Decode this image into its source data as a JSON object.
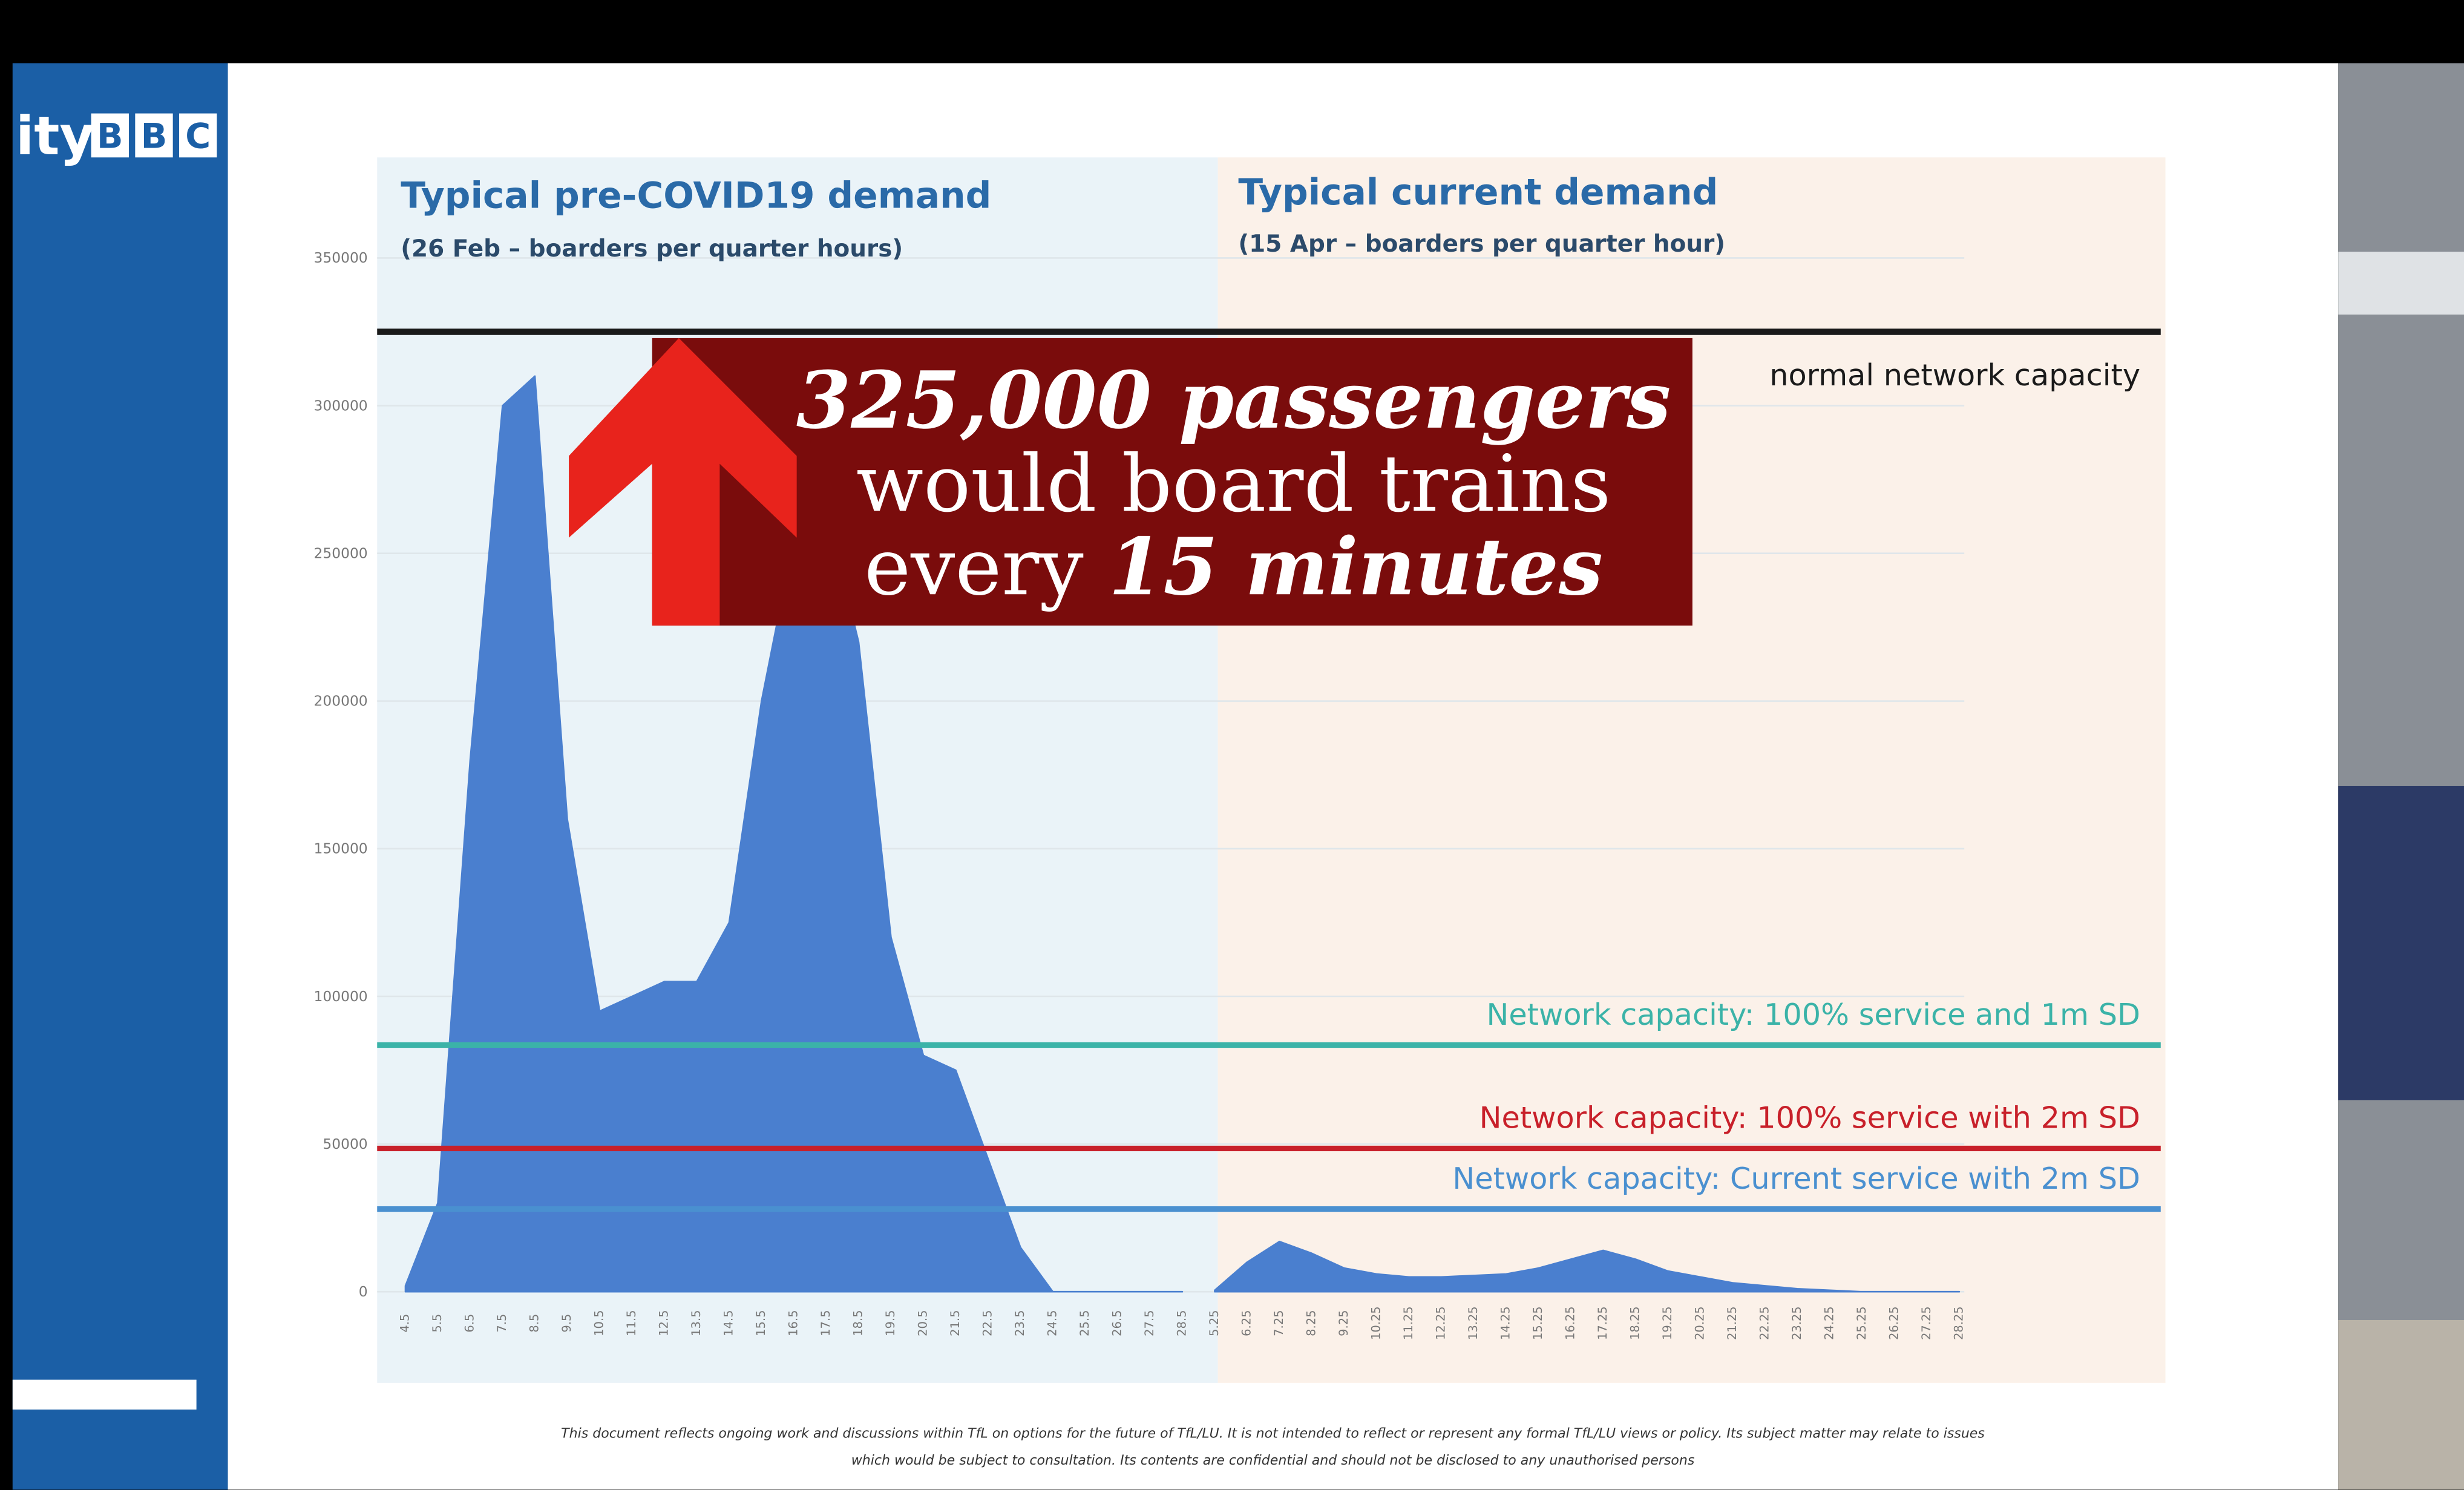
{
  "chart_data": {
    "type": "area",
    "annotations": {
      "left_title": "Typical pre-COVID19 demand",
      "left_subtitle": "(26 Feb – boarders per quarter hours)",
      "right_title": "Typical current demand",
      "right_subtitle": "(15 Apr – boarders per quarter hour)"
    },
    "banner": {
      "line1": "325,000 passengers",
      "line2": "would board trains",
      "line3_a": "every",
      "line3_b": "15 minutes"
    },
    "categories": [
      "4.5",
      "5.5",
      "6.5",
      "7.5",
      "8.5",
      "9.5",
      "10.5",
      "11.5",
      "12.5",
      "13.5",
      "14.5",
      "15.5",
      "16.5",
      "17.5",
      "18.5",
      "19.5",
      "20.5",
      "21.5",
      "22.5",
      "23.5",
      "24.5",
      "25.5",
      "26.5",
      "27.5",
      "28.5",
      "5.25",
      "6.25",
      "7.25",
      "8.25",
      "9.25",
      "10.25",
      "11.25",
      "12.25",
      "13.25",
      "14.25",
      "15.25",
      "16.25",
      "17.25",
      "18.25",
      "19.25",
      "20.25",
      "21.25",
      "22.25",
      "23.25",
      "24.25",
      "25.25",
      "26.25",
      "27.25",
      "28.25"
    ],
    "series": [
      {
        "color": "#4a7fcf",
        "values": [
          2000,
          30000,
          180000,
          300000,
          310000,
          160000,
          95000,
          100000,
          105000,
          105000,
          125000,
          200000,
          255000,
          265000,
          220000,
          120000,
          80000,
          75000,
          45000,
          15000,
          0,
          0,
          0,
          0,
          0,
          null,
          null,
          null,
          null,
          null,
          null,
          null,
          null,
          null,
          null,
          null,
          null,
          null,
          null,
          null,
          null,
          null,
          null,
          null,
          null,
          null,
          null,
          null,
          null
        ]
      },
      {
        "color": "#4a7fcf",
        "values": [
          null,
          null,
          null,
          null,
          null,
          null,
          null,
          null,
          null,
          null,
          null,
          null,
          null,
          null,
          null,
          null,
          null,
          null,
          null,
          null,
          null,
          null,
          null,
          null,
          null,
          500,
          10000,
          17000,
          13000,
          8000,
          6000,
          5000,
          5000,
          5500,
          6000,
          8000,
          11000,
          14000,
          11000,
          7000,
          5000,
          3000,
          2000,
          1000,
          500,
          0,
          0,
          0,
          0
        ]
      }
    ],
    "reference_lines": [
      {
        "value": 325000,
        "label": "normal network capacity",
        "color": "#1a1a1a"
      },
      {
        "value": 83500,
        "label": "Network capacity: 100% service and 1m SD",
        "color": "#3bb3a8"
      },
      {
        "value": 48500,
        "label": "Network capacity: 100% service with 2m SD",
        "color": "#c8202a"
      },
      {
        "value": 28000,
        "label": "Network capacity: Current service with 2m SD",
        "color": "#4a90d0"
      }
    ],
    "ylim": [
      0,
      350000
    ],
    "yticks": [
      0,
      50000,
      100000,
      150000,
      200000,
      250000,
      300000,
      350000
    ],
    "grid": true,
    "disclaimer": [
      "This document reflects ongoing work and discussions within TfL on options for the future of TfL/LU. It is not intended to reflect or represent any formal TfL/LU views or policy. Its subject matter may relate to issues",
      "which would be subject to consultation. Its contents are confidential and should not be disclosed to any unauthorised persons"
    ]
  },
  "broadcast": {
    "side_text": "ity",
    "logo": [
      "B",
      "B",
      "C"
    ]
  }
}
